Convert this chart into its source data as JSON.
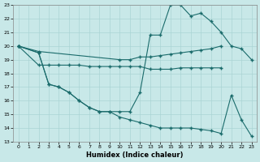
{
  "xlabel": "Humidex (Indice chaleur)",
  "xlim": [
    -0.5,
    23.5
  ],
  "ylim": [
    13,
    23
  ],
  "yticks": [
    13,
    14,
    15,
    16,
    17,
    18,
    19,
    20,
    21,
    22,
    23
  ],
  "xticks": [
    0,
    1,
    2,
    3,
    4,
    5,
    6,
    7,
    8,
    9,
    10,
    11,
    12,
    13,
    14,
    15,
    16,
    17,
    18,
    19,
    20,
    21,
    22,
    23
  ],
  "bg_color": "#c8e8e8",
  "grid_color": "#aad4d4",
  "line_color": "#1a6b6b",
  "line1_x": [
    0,
    2,
    10,
    11,
    12,
    13,
    14,
    15,
    16,
    17,
    18,
    19,
    20
  ],
  "line1_y": [
    20,
    19.6,
    19.0,
    19.0,
    19.2,
    19.2,
    19.3,
    19.4,
    19.5,
    19.6,
    19.7,
    19.8,
    20.0
  ],
  "line2_x": [
    0,
    2,
    3,
    4,
    5,
    6,
    7,
    8,
    9,
    10,
    11,
    12,
    13,
    14,
    15,
    16,
    17,
    18,
    19,
    20
  ],
  "line2_y": [
    20,
    18.6,
    18.6,
    18.6,
    18.6,
    18.6,
    18.5,
    18.5,
    18.5,
    18.5,
    18.5,
    18.5,
    18.3,
    18.3,
    18.3,
    18.4,
    18.4,
    18.4,
    18.4,
    18.4
  ],
  "line3_x": [
    0,
    2,
    3,
    4,
    5,
    6,
    7,
    8,
    9,
    10,
    11,
    12,
    13,
    14,
    15,
    16,
    17,
    18,
    19,
    20,
    21,
    22,
    23
  ],
  "line3_y": [
    20.0,
    19.5,
    17.2,
    17.0,
    16.6,
    16.0,
    15.5,
    15.2,
    15.2,
    15.2,
    15.2,
    16.6,
    20.8,
    20.8,
    23.0,
    23.0,
    22.2,
    22.4,
    21.8,
    21.0,
    20.0,
    19.8,
    19.0
  ],
  "line4_x": [
    0,
    2,
    3,
    4,
    5,
    6,
    7,
    8,
    9,
    10,
    11,
    12,
    13,
    14,
    15,
    16,
    17,
    18,
    19,
    20,
    21,
    22,
    23
  ],
  "line4_y": [
    20.0,
    19.5,
    17.2,
    17.0,
    16.6,
    16.0,
    15.5,
    15.2,
    15.2,
    14.8,
    14.6,
    14.4,
    14.2,
    14.0,
    14.0,
    14.0,
    14.0,
    13.9,
    13.8,
    13.6,
    16.4,
    14.6,
    13.4
  ]
}
